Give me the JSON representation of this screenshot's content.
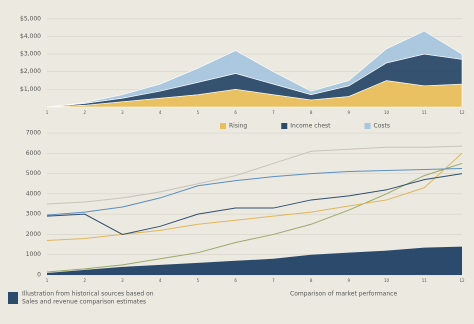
{
  "chart_data": [
    {
      "type": "area",
      "stacked": true,
      "categories": [
        "1",
        "2",
        "3",
        "4",
        "5",
        "6",
        "7",
        "8",
        "9",
        "10",
        "11",
        "12"
      ],
      "ylim": [
        0,
        5500
      ],
      "yticks": [
        {
          "value": 1000,
          "label": "$1,000"
        },
        {
          "value": 2000,
          "label": "$2,000"
        },
        {
          "value": 3000,
          "label": "$3,000"
        },
        {
          "value": 4000,
          "label": "$4,000"
        },
        {
          "value": 5000,
          "label": "$5,000"
        }
      ],
      "grid": true,
      "series": [
        {
          "name": "Rising",
          "color": "#e9bf5c",
          "values": [
            0,
            100,
            300,
            500,
            700,
            1000,
            700,
            400,
            600,
            1500,
            1200,
            1300
          ]
        },
        {
          "name": "Income chest",
          "color": "#2c4a6b",
          "values": [
            0,
            100,
            200,
            400,
            700,
            900,
            600,
            300,
            600,
            1000,
            1800,
            1400
          ]
        },
        {
          "name": "Costs",
          "color": "#a8c7de",
          "values": [
            0,
            50,
            200,
            400,
            800,
            1300,
            700,
            200,
            300,
            800,
            1300,
            300
          ]
        }
      ]
    },
    {
      "type": "line",
      "categories": [
        "1",
        "2",
        "3",
        "4",
        "5",
        "6",
        "7",
        "8",
        "9",
        "10",
        "11",
        "12"
      ],
      "ylim": [
        0,
        7000
      ],
      "yticks": [
        0,
        1000,
        2000,
        3000,
        4000,
        5000,
        6000,
        7000
      ],
      "grid": true,
      "series": [
        {
          "color": "#2c4a6b",
          "area": true,
          "values": [
            100,
            250,
            400,
            500,
            600,
            700,
            800,
            1000,
            1100,
            1200,
            1350,
            1400
          ]
        },
        {
          "color": "#9aa86a",
          "values": [
            150,
            300,
            500,
            800,
            1100,
            1600,
            2000,
            2500,
            3200,
            4000,
            4900,
            5500
          ]
        },
        {
          "color": "#e0b85c",
          "values": [
            1700,
            1800,
            2000,
            2200,
            2500,
            2700,
            2900,
            3100,
            3400,
            3700,
            4300,
            6000
          ]
        },
        {
          "color": "#2f4f70",
          "values": [
            2900,
            3000,
            2000,
            2400,
            3000,
            3300,
            3300,
            3700,
            3900,
            4200,
            4700,
            5000
          ]
        },
        {
          "color": "#5b8fc0",
          "values": [
            2950,
            3100,
            3350,
            3800,
            4400,
            4650,
            4850,
            5000,
            5100,
            5150,
            5200,
            5250
          ]
        },
        {
          "color": "#c9c4b8",
          "values": [
            3500,
            3600,
            3800,
            4100,
            4500,
            4900,
            5500,
            6100,
            6200,
            6300,
            6300,
            6350
          ]
        }
      ]
    }
  ],
  "footer": [
    "Illustration from historical sources based on",
    "Sales and revenue comparison estimates",
    "Comparison of market performance"
  ]
}
